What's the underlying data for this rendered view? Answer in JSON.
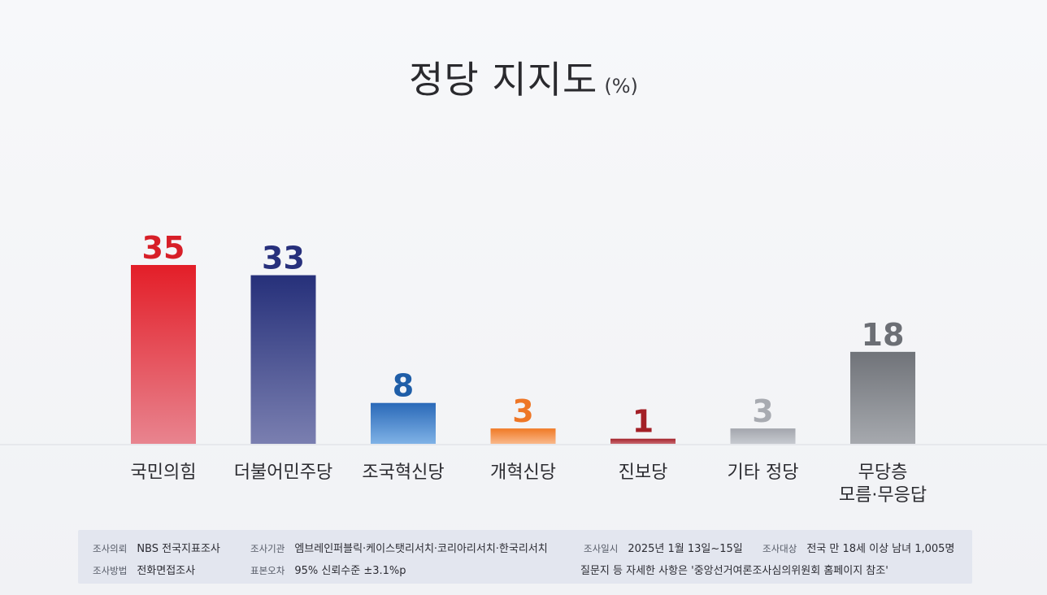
{
  "chart_data": {
    "type": "bar",
    "title": "정당 지지도",
    "unit": "(%)",
    "categories": [
      [
        "국민의힘"
      ],
      [
        "더불어민주당"
      ],
      [
        "조국혁신당"
      ],
      [
        "개혁신당"
      ],
      [
        "진보당"
      ],
      [
        "기타 정당"
      ],
      [
        "무당층",
        "모름·무응답"
      ]
    ],
    "values": [
      35,
      33,
      8,
      3,
      1,
      3,
      18
    ],
    "bar_colors": [
      [
        "#e31e28",
        "#e8848f"
      ],
      [
        "#26307a",
        "#7a7fb0"
      ],
      [
        "#2a69b8",
        "#7fb2e6"
      ],
      [
        "#f07a25",
        "#f9b88a"
      ],
      [
        "#a4242c",
        "#c86870"
      ],
      [
        "#a3a6ad",
        "#c7cad0"
      ],
      [
        "#707379",
        "#a6a9ae"
      ]
    ],
    "label_colors": [
      "#d71f28",
      "#27307c",
      "#1f5ea8",
      "#ee7626",
      "#a31f26",
      "#a8abb1",
      "#6c6f75"
    ],
    "ylim": [
      0,
      35
    ],
    "grid": false
  },
  "footer": {
    "sponsor_label": "조사의뢰",
    "sponsor": "NBS 전국지표조사",
    "agency_label": "조사기관",
    "agency": "엠브레인퍼블릭·케이스탯리서치·코리아리서치·한국리서치",
    "date_label": "조사일시",
    "date": "2025년 1월 13일~15일",
    "target_label": "조사대상",
    "target": "전국 만 18세 이상 남녀 1,005명",
    "method_label": "조사방법",
    "method": "전화면접조사",
    "error_label": "표본오차",
    "error": "95% 신뢰수준 ±3.1%p",
    "note": "질문지 등 자세한 사항은 '중앙선거여론조사심의위원회 홈페이지 참조'"
  }
}
